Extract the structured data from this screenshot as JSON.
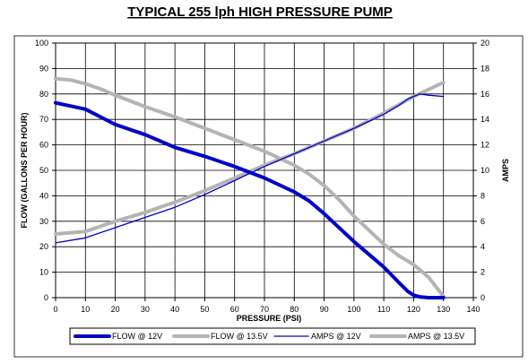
{
  "chart_data": {
    "type": "line",
    "title": "TYPICAL 255 lph HIGH PRESSURE PUMP",
    "xlabel": "PRESSURE (PSI)",
    "ylabel": "FLOW (GALLONS PER HOUR)",
    "y2label": "AMPS",
    "xlim": [
      0,
      140
    ],
    "ylim": [
      0,
      100
    ],
    "y2lim": [
      0,
      20
    ],
    "xticks": [
      "0",
      "10",
      "20",
      "30",
      "40",
      "50",
      "60",
      "70",
      "80",
      "90",
      "100",
      "110",
      "120",
      "130",
      "140"
    ],
    "yticks": [
      "0",
      "10",
      "20",
      "30",
      "40",
      "50",
      "60",
      "70",
      "80",
      "90",
      "100"
    ],
    "y2ticks": [
      "0",
      "2",
      "4",
      "6",
      "8",
      "10",
      "12",
      "14",
      "16",
      "18",
      "20"
    ],
    "grid": "vertical-and-horizontal",
    "legend_position": "bottom",
    "series": [
      {
        "name": "FLOW @ 12V",
        "axis": "left",
        "color": "#0000cc",
        "style": "thick",
        "x": [
          0,
          10,
          20,
          30,
          40,
          50,
          60,
          70,
          80,
          85,
          90,
          95,
          100,
          105,
          110,
          115,
          118,
          120,
          122,
          125,
          130
        ],
        "y": [
          76.5,
          74,
          68,
          64,
          59,
          55.5,
          51.5,
          47,
          41.5,
          38,
          33,
          27.5,
          22,
          17,
          12,
          6,
          2.5,
          1,
          0.3,
          0,
          0
        ]
      },
      {
        "name": "FLOW @ 13.5V",
        "axis": "left",
        "color": "#b4b4b4",
        "style": "thick",
        "x": [
          0,
          5,
          10,
          15,
          20,
          30,
          40,
          50,
          60,
          70,
          80,
          85,
          90,
          95,
          100,
          105,
          110,
          115,
          120,
          125,
          128,
          130
        ],
        "y": [
          86,
          85.5,
          84,
          82,
          79.5,
          75,
          71,
          66.5,
          62,
          57.5,
          52,
          48.5,
          44,
          38.5,
          32,
          26.5,
          21,
          16.5,
          13,
          8,
          3.5,
          0.5
        ]
      },
      {
        "name": "AMPS @ 12V",
        "axis": "right",
        "color": "#0000cc",
        "style": "thin",
        "x": [
          0,
          10,
          20,
          30,
          40,
          50,
          60,
          70,
          80,
          90,
          100,
          110,
          115,
          118,
          120,
          122,
          125,
          130
        ],
        "y": [
          4.3,
          4.7,
          5.5,
          6.3,
          7.1,
          8.1,
          9.2,
          10.3,
          11.3,
          12.3,
          13.3,
          14.4,
          15.1,
          15.6,
          15.8,
          16.0,
          15.9,
          15.8
        ]
      },
      {
        "name": "AMPS @ 13.5V",
        "axis": "right",
        "color": "#b4b4b4",
        "style": "thick",
        "x": [
          0,
          10,
          20,
          30,
          40,
          50,
          60,
          70,
          80,
          90,
          100,
          110,
          120,
          130
        ],
        "y": [
          5.0,
          5.2,
          6.0,
          6.7,
          7.5,
          8.4,
          9.4,
          10.4,
          11.3,
          12.3,
          13.3,
          14.5,
          15.8,
          16.9
        ]
      }
    ]
  }
}
